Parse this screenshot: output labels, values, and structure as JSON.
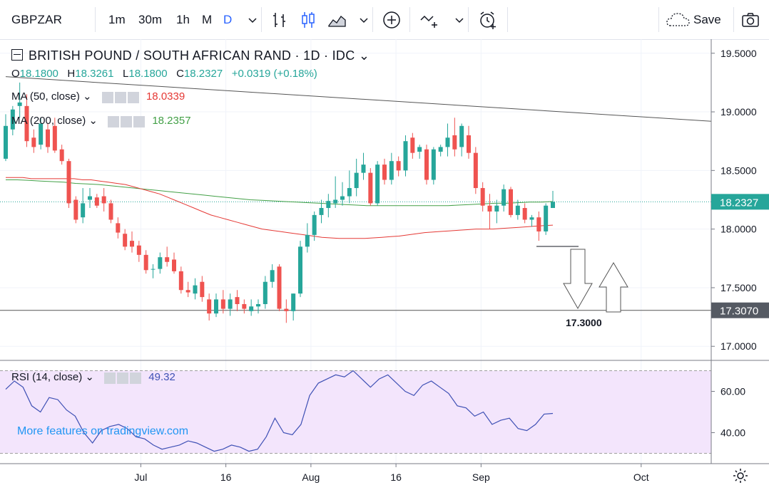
{
  "toolbar": {
    "symbol": "GBPZAR",
    "intervals": [
      "1m",
      "30m",
      "1h",
      "M",
      "D"
    ],
    "active_interval": "D",
    "save_label": "Save"
  },
  "legend": {
    "title": "BRITISH POUND / SOUTH AFRICAN RAND · 1D · IDC",
    "o_label": "O",
    "o": "18.1800",
    "h_label": "H",
    "h": "18.3261",
    "l_label": "L",
    "l": "18.1800",
    "c_label": "C",
    "c": "18.2327",
    "change": "+0.0319 (+0.18%)",
    "ma50_label": "MA (50, close)",
    "ma50_value": "18.0339",
    "ma200_label": "MA (200, close)",
    "ma200_value": "18.2357",
    "rsi_label": "RSI (14, close)",
    "rsi_value": "49.32"
  },
  "watermark": "More features on tradingview.com",
  "colors": {
    "up": "#26a69a",
    "down": "#ef5350",
    "ma50": "#e53935",
    "ma200": "#43a047",
    "rsi_line": "#3f51b5",
    "rsi_band": "#f3e5fc",
    "accent": "#2962ff"
  },
  "chart_data": {
    "type": "candlestick",
    "price_ticks": [
      "19.5000",
      "19.0000",
      "18.5000",
      "18.0000",
      "17.5000",
      "17.0000"
    ],
    "price_tick_values": [
      19.5,
      19.0,
      18.5,
      18.0,
      17.5,
      17.0
    ],
    "price_range": [
      16.88,
      19.62
    ],
    "x_ticks": [
      "Jul",
      "16",
      "Aug",
      "16",
      "Sep",
      "Oct"
    ],
    "x_tick_index": [
      27,
      44,
      61,
      78,
      95,
      127
    ],
    "x_range": [
      0,
      141
    ],
    "current_price_label": "18.2327",
    "current_price": 18.2327,
    "support_label": "17.3070",
    "support_price": 17.307,
    "target_label": "17.3000",
    "candles": [
      {
        "o": 18.6,
        "h": 18.98,
        "l": 18.58,
        "c": 18.88
      },
      {
        "o": 18.85,
        "h": 19.05,
        "l": 18.8,
        "c": 19.02
      },
      {
        "o": 19.05,
        "h": 19.25,
        "l": 18.95,
        "c": 19.08
      },
      {
        "o": 19.05,
        "h": 19.15,
        "l": 18.7,
        "c": 18.75
      },
      {
        "o": 18.78,
        "h": 18.85,
        "l": 18.65,
        "c": 18.7
      },
      {
        "o": 18.72,
        "h": 18.95,
        "l": 18.68,
        "c": 18.9
      },
      {
        "o": 18.85,
        "h": 18.9,
        "l": 18.65,
        "c": 18.7
      },
      {
        "o": 18.88,
        "h": 18.95,
        "l": 18.65,
        "c": 18.67
      },
      {
        "o": 18.68,
        "h": 18.72,
        "l": 18.55,
        "c": 18.58
      },
      {
        "o": 18.58,
        "h": 18.6,
        "l": 18.18,
        "c": 18.22
      },
      {
        "o": 18.25,
        "h": 18.28,
        "l": 18.05,
        "c": 18.08
      },
      {
        "o": 18.1,
        "h": 18.35,
        "l": 18.05,
        "c": 18.22
      },
      {
        "o": 18.25,
        "h": 18.35,
        "l": 18.18,
        "c": 18.28
      },
      {
        "o": 18.27,
        "h": 18.3,
        "l": 18.18,
        "c": 18.2
      },
      {
        "o": 18.28,
        "h": 18.35,
        "l": 18.15,
        "c": 18.22
      },
      {
        "o": 18.22,
        "h": 18.25,
        "l": 18.05,
        "c": 18.08
      },
      {
        "o": 18.05,
        "h": 18.1,
        "l": 17.92,
        "c": 17.97
      },
      {
        "o": 17.96,
        "h": 18.0,
        "l": 17.82,
        "c": 17.85
      },
      {
        "o": 17.9,
        "h": 17.98,
        "l": 17.8,
        "c": 17.85
      },
      {
        "o": 17.86,
        "h": 17.9,
        "l": 17.72,
        "c": 17.78
      },
      {
        "o": 17.78,
        "h": 17.82,
        "l": 17.62,
        "c": 17.65
      },
      {
        "o": 17.66,
        "h": 17.7,
        "l": 17.58,
        "c": 17.66
      },
      {
        "o": 17.66,
        "h": 17.8,
        "l": 17.62,
        "c": 17.76
      },
      {
        "o": 17.76,
        "h": 17.85,
        "l": 17.68,
        "c": 17.72
      },
      {
        "o": 17.74,
        "h": 17.8,
        "l": 17.62,
        "c": 17.64
      },
      {
        "o": 17.64,
        "h": 17.68,
        "l": 17.45,
        "c": 17.48
      },
      {
        "o": 17.48,
        "h": 17.55,
        "l": 17.42,
        "c": 17.46
      },
      {
        "o": 17.45,
        "h": 17.58,
        "l": 17.4,
        "c": 17.52
      },
      {
        "o": 17.55,
        "h": 17.6,
        "l": 17.38,
        "c": 17.42
      },
      {
        "o": 17.4,
        "h": 17.45,
        "l": 17.22,
        "c": 17.28
      },
      {
        "o": 17.28,
        "h": 17.45,
        "l": 17.25,
        "c": 17.4
      },
      {
        "o": 17.4,
        "h": 17.48,
        "l": 17.28,
        "c": 17.32
      },
      {
        "o": 17.32,
        "h": 17.45,
        "l": 17.26,
        "c": 17.4
      },
      {
        "o": 17.42,
        "h": 17.48,
        "l": 17.3,
        "c": 17.36
      },
      {
        "o": 17.36,
        "h": 17.4,
        "l": 17.28,
        "c": 17.32
      },
      {
        "o": 17.3,
        "h": 17.4,
        "l": 17.26,
        "c": 17.34
      },
      {
        "o": 17.34,
        "h": 17.4,
        "l": 17.28,
        "c": 17.36
      },
      {
        "o": 17.36,
        "h": 17.6,
        "l": 17.32,
        "c": 17.55
      },
      {
        "o": 17.55,
        "h": 17.7,
        "l": 17.5,
        "c": 17.65
      },
      {
        "o": 17.68,
        "h": 17.7,
        "l": 17.3,
        "c": 17.32
      },
      {
        "o": 17.32,
        "h": 17.4,
        "l": 17.2,
        "c": 17.3
      },
      {
        "o": 17.3,
        "h": 17.45,
        "l": 17.22,
        "c": 17.45
      },
      {
        "o": 17.45,
        "h": 17.9,
        "l": 17.42,
        "c": 17.85
      },
      {
        "o": 17.85,
        "h": 18.05,
        "l": 17.8,
        "c": 17.95
      },
      {
        "o": 17.95,
        "h": 18.15,
        "l": 17.9,
        "c": 18.12
      },
      {
        "o": 18.12,
        "h": 18.25,
        "l": 18.05,
        "c": 18.18
      },
      {
        "o": 18.18,
        "h": 18.3,
        "l": 18.1,
        "c": 18.24
      },
      {
        "o": 18.22,
        "h": 18.45,
        "l": 18.18,
        "c": 18.25
      },
      {
        "o": 18.25,
        "h": 18.4,
        "l": 18.2,
        "c": 18.28
      },
      {
        "o": 18.28,
        "h": 18.5,
        "l": 18.22,
        "c": 18.35
      },
      {
        "o": 18.35,
        "h": 18.6,
        "l": 18.28,
        "c": 18.48
      },
      {
        "o": 18.48,
        "h": 18.65,
        "l": 18.42,
        "c": 18.55
      },
      {
        "o": 18.48,
        "h": 18.52,
        "l": 18.2,
        "c": 18.22
      },
      {
        "o": 18.22,
        "h": 18.58,
        "l": 18.2,
        "c": 18.55
      },
      {
        "o": 18.55,
        "h": 18.6,
        "l": 18.38,
        "c": 18.42
      },
      {
        "o": 18.42,
        "h": 18.65,
        "l": 18.38,
        "c": 18.58
      },
      {
        "o": 18.58,
        "h": 18.62,
        "l": 18.45,
        "c": 18.5
      },
      {
        "o": 18.5,
        "h": 18.8,
        "l": 18.45,
        "c": 18.75
      },
      {
        "o": 18.78,
        "h": 18.82,
        "l": 18.6,
        "c": 18.65
      },
      {
        "o": 18.66,
        "h": 18.72,
        "l": 18.6,
        "c": 18.7
      },
      {
        "o": 18.68,
        "h": 18.72,
        "l": 18.38,
        "c": 18.42
      },
      {
        "o": 18.42,
        "h": 18.7,
        "l": 18.38,
        "c": 18.68
      },
      {
        "o": 18.66,
        "h": 18.72,
        "l": 18.62,
        "c": 18.7
      },
      {
        "o": 18.7,
        "h": 18.9,
        "l": 18.62,
        "c": 18.78
      },
      {
        "o": 18.8,
        "h": 18.95,
        "l": 18.62,
        "c": 18.68
      },
      {
        "o": 18.7,
        "h": 18.9,
        "l": 18.62,
        "c": 18.88
      },
      {
        "o": 18.8,
        "h": 18.88,
        "l": 18.6,
        "c": 18.65
      },
      {
        "o": 18.65,
        "h": 18.7,
        "l": 18.3,
        "c": 18.35
      },
      {
        "o": 18.35,
        "h": 18.4,
        "l": 18.15,
        "c": 18.2
      },
      {
        "o": 18.2,
        "h": 18.3,
        "l": 18.0,
        "c": 18.15
      },
      {
        "o": 18.15,
        "h": 18.25,
        "l": 18.05,
        "c": 18.2
      },
      {
        "o": 18.2,
        "h": 18.38,
        "l": 18.15,
        "c": 18.34
      },
      {
        "o": 18.34,
        "h": 18.36,
        "l": 18.1,
        "c": 18.12
      },
      {
        "o": 18.12,
        "h": 18.25,
        "l": 18.08,
        "c": 18.2
      },
      {
        "o": 18.18,
        "h": 18.22,
        "l": 18.05,
        "c": 18.08
      },
      {
        "o": 18.08,
        "h": 18.12,
        "l": 18.02,
        "c": 18.1
      },
      {
        "o": 18.1,
        "h": 18.15,
        "l": 17.9,
        "c": 17.98
      },
      {
        "o": 17.98,
        "h": 18.22,
        "l": 17.95,
        "c": 18.2
      },
      {
        "o": 18.18,
        "h": 18.3261,
        "l": 18.18,
        "c": 18.2327
      }
    ],
    "ma50": [
      18.44,
      18.44,
      18.44,
      18.43,
      18.43,
      18.43,
      18.43,
      18.43,
      18.43,
      18.42,
      18.42,
      18.41,
      18.4,
      18.39,
      18.38,
      18.36,
      18.34,
      18.32,
      18.3,
      18.27,
      18.24,
      18.21,
      18.18,
      18.15,
      18.12,
      18.1,
      18.08,
      18.06,
      18.04,
      18.02,
      18.0,
      17.99,
      17.98,
      17.97,
      17.96,
      17.95,
      17.94,
      17.93,
      17.925,
      17.92,
      17.92,
      17.92,
      17.92,
      17.925,
      17.93,
      17.935,
      17.94,
      17.95,
      17.96,
      17.97,
      17.975,
      17.98,
      17.985,
      17.99,
      17.995,
      18.0,
      18.0,
      18.0,
      18.005,
      18.01,
      18.015,
      18.02,
      18.025,
      18.03,
      18.0339
    ],
    "ma50_start": 0,
    "ma200": [
      18.42,
      18.42,
      18.415,
      18.41,
      18.405,
      18.4,
      18.39,
      18.385,
      18.38,
      18.37,
      18.36,
      18.35,
      18.34,
      18.33,
      18.32,
      18.31,
      18.3,
      18.29,
      18.28,
      18.27,
      18.26,
      18.25,
      18.245,
      18.24,
      18.235,
      18.23,
      18.225,
      18.22,
      18.215,
      18.21,
      18.205,
      18.2,
      18.2,
      18.2,
      18.2,
      18.2,
      18.2,
      18.2,
      18.2,
      18.205,
      18.21,
      18.215,
      18.22,
      18.22,
      18.225,
      18.23,
      18.23,
      18.2357
    ],
    "ma200_start": 0,
    "trendline": {
      "start": [
        0,
        19.3
      ],
      "end": [
        141,
        18.92
      ]
    },
    "rsi": {
      "ticks": [
        "60.00",
        "40.00"
      ],
      "tick_values": [
        60,
        40
      ],
      "range": [
        25,
        75
      ],
      "band": [
        30,
        70
      ],
      "values": [
        61,
        65,
        62,
        53,
        50,
        57,
        56,
        51,
        48,
        40,
        35,
        41,
        43,
        44,
        42,
        38,
        37,
        34,
        32,
        33,
        34,
        36,
        35,
        33,
        31,
        32,
        34,
        33,
        31,
        32,
        38,
        47,
        40,
        39,
        44,
        58,
        64,
        66,
        68,
        67,
        70,
        66,
        62,
        66,
        68,
        64,
        60,
        58,
        63,
        65,
        62,
        59,
        53,
        52,
        48,
        50,
        44,
        46,
        47,
        42,
        41,
        44,
        49,
        49.32
      ]
    }
  }
}
